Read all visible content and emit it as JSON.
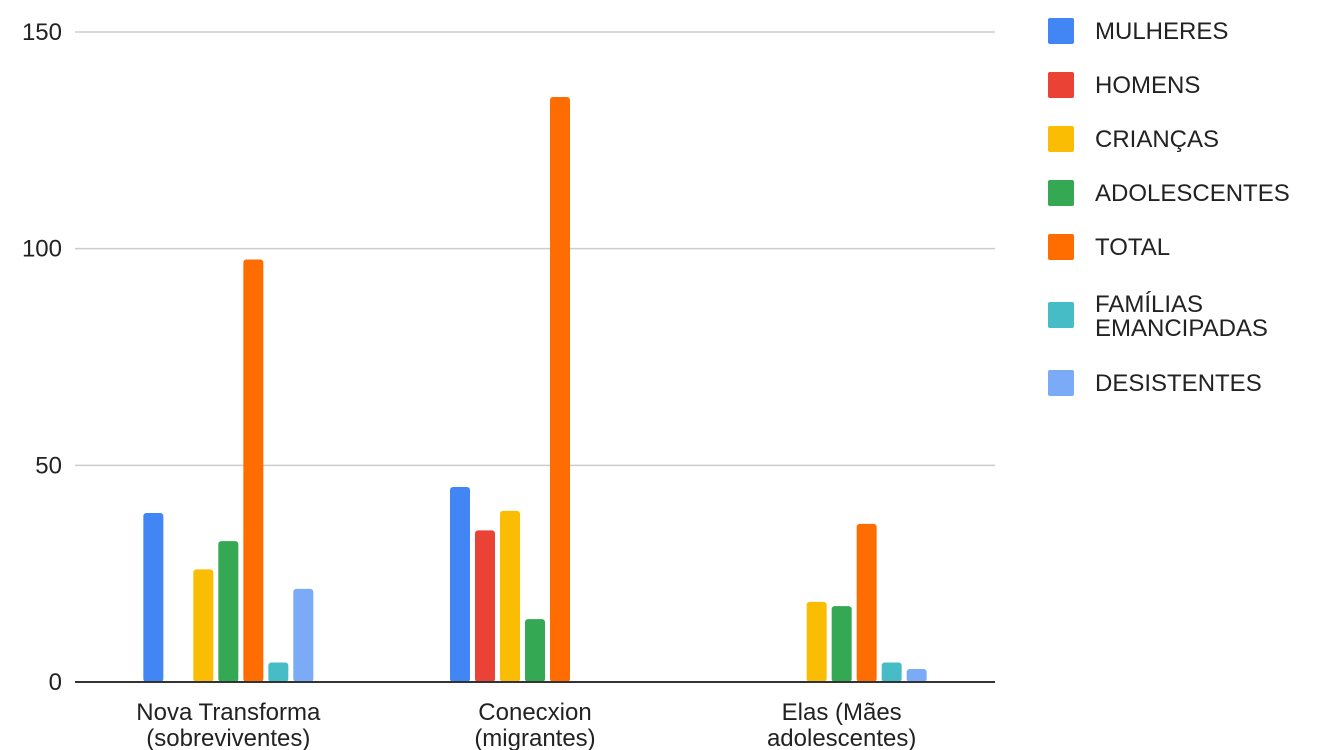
{
  "chart_data": {
    "type": "bar",
    "title": "",
    "xlabel": "",
    "ylabel": "",
    "ylim": [
      0,
      150
    ],
    "yticks": [
      0,
      50,
      100,
      150
    ],
    "grid": true,
    "legend_position": "right",
    "categories": [
      [
        "Nova Transforma",
        "(sobreviventes)"
      ],
      [
        "Conecxion",
        "(migrantes)"
      ],
      [
        "Elas (Mães",
        "adolescentes)"
      ]
    ],
    "series": [
      {
        "name": "MULHERES",
        "label_lines": [
          "MULHERES"
        ],
        "color": "#4285F4",
        "values": [
          39,
          45,
          0
        ]
      },
      {
        "name": "HOMENS",
        "label_lines": [
          "HOMENS"
        ],
        "color": "#EA4335",
        "values": [
          0,
          35,
          0
        ]
      },
      {
        "name": "CRIANÇAS",
        "label_lines": [
          "CRIANÇAS"
        ],
        "color": "#FBBC04",
        "values": [
          26,
          39.5,
          18.5
        ]
      },
      {
        "name": "ADOLESCENTES",
        "label_lines": [
          "ADOLESCENTES"
        ],
        "color": "#34A853",
        "values": [
          32.5,
          14.5,
          17.5
        ]
      },
      {
        "name": "TOTAL",
        "label_lines": [
          "TOTAL"
        ],
        "color": "#FF6D01",
        "values": [
          97.5,
          135,
          36.5
        ]
      },
      {
        "name": "FAMÍLIAS EMANCIPADAS",
        "label_lines": [
          "FAMÍLIAS",
          "EMANCIPADAS"
        ],
        "color": "#46BDC6",
        "values": [
          4.5,
          0,
          4.5
        ]
      },
      {
        "name": "DESISTENTES",
        "label_lines": [
          "DESISTENTES"
        ],
        "color": "#7BAAF7",
        "values": [
          21.5,
          0,
          3
        ]
      }
    ]
  }
}
